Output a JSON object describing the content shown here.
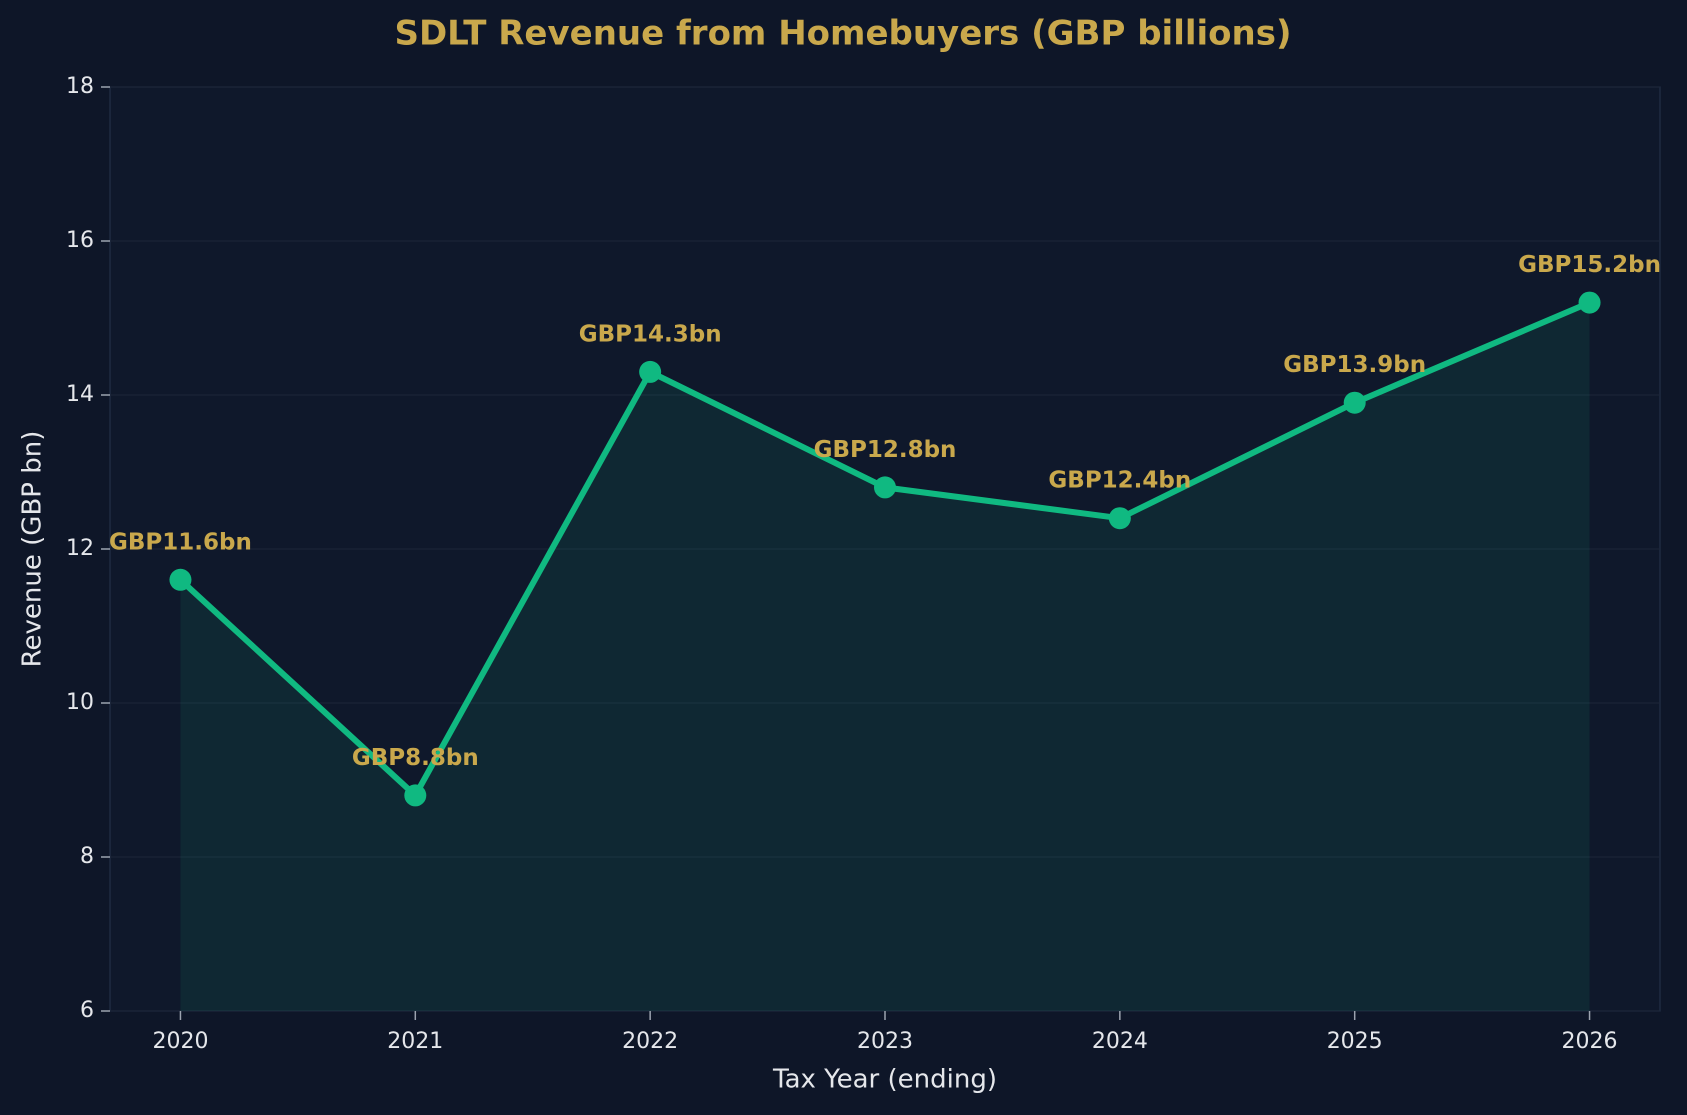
{
  "chart_data": {
    "type": "line",
    "title": "SDLT Revenue from Homebuyers (GBP billions)",
    "x_label": "Tax Year (ending)",
    "y_label": "Revenue (GBP bn)",
    "x": [
      2020,
      2021,
      2022,
      2023,
      2024,
      2025,
      2026
    ],
    "series": [
      {
        "color": "#10b981",
        "values": [
          11.6,
          8.8,
          14.3,
          12.8,
          12.4,
          13.9,
          15.2
        ],
        "value_labels": [
          "GBP11.6bn",
          "GBP8.8bn",
          "GBP14.3bn",
          "GBP12.8bn",
          "GBP12.4bn",
          "GBP13.9bn",
          "GBP15.2bn"
        ]
      }
    ],
    "xlim": [
      2019.7,
      2026.3
    ],
    "xticks": [
      2020,
      2021,
      2022,
      2023,
      2024,
      2025,
      2026
    ],
    "ylim": [
      6,
      18
    ],
    "yticks": [
      6,
      8,
      10,
      12,
      14,
      16,
      18
    ],
    "grid": true,
    "area_fill": true
  }
}
